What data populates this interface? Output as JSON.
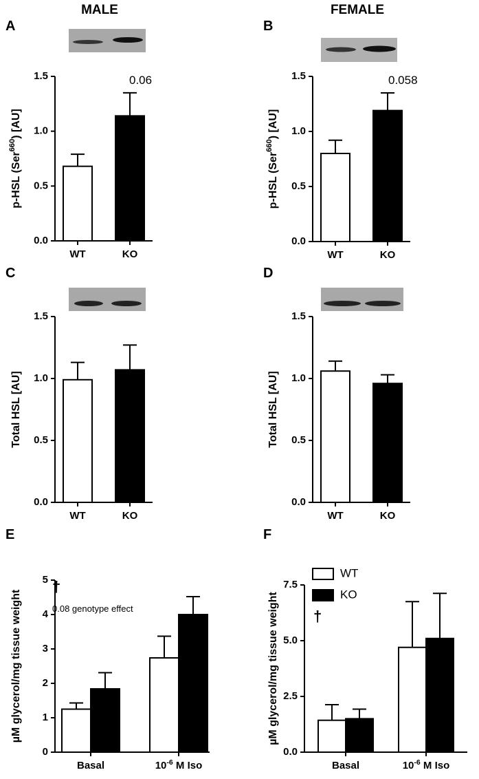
{
  "column_titles": [
    "MALE",
    "FEMALE"
  ],
  "chart_data": [
    {
      "type": "bar",
      "panel": "A",
      "ylabel": [
        "p-HSL (Ser",
        "660",
        ") [AU]"
      ],
      "categories": [
        "WT",
        "KO"
      ],
      "values": [
        0.68,
        1.14
      ],
      "errors": [
        0.11,
        0.21
      ],
      "colors": [
        "#ffffff",
        "#000000"
      ],
      "ylim": [
        0,
        1.5
      ],
      "yticks": [
        {
          "value": 0,
          "label": "0.0"
        },
        0.5,
        {
          "value": 1,
          "label": "1.0"
        },
        1.5
      ],
      "annotations": [
        "0.06"
      ]
    },
    {
      "type": "bar",
      "panel": "B",
      "ylabel": [
        "p-HSL (Ser",
        "660",
        ") [AU]"
      ],
      "categories": [
        "WT",
        "KO"
      ],
      "values": [
        0.8,
        1.19
      ],
      "errors": [
        0.12,
        0.16
      ],
      "colors": [
        "#ffffff",
        "#000000"
      ],
      "ylim": [
        0,
        1.5
      ],
      "yticks": [
        {
          "value": 0,
          "label": "0.0"
        },
        0.5,
        {
          "value": 1,
          "label": "1.0"
        },
        1.5
      ],
      "annotations": [
        "0.058"
      ]
    },
    {
      "type": "bar",
      "panel": "C",
      "ylabel": [
        "Total HSL [AU]"
      ],
      "categories": [
        "WT",
        "KO"
      ],
      "values": [
        0.99,
        1.07
      ],
      "errors": [
        0.14,
        0.2
      ],
      "colors": [
        "#ffffff",
        "#000000"
      ],
      "ylim": [
        0,
        1.5
      ],
      "yticks": [
        {
          "value": 0,
          "label": "0.0"
        },
        0.5,
        {
          "value": 1,
          "label": "1.0"
        },
        1.5
      ]
    },
    {
      "type": "bar",
      "panel": "D",
      "ylabel": [
        "Total HSL [AU]"
      ],
      "categories": [
        "WT",
        "KO"
      ],
      "values": [
        1.06,
        0.96
      ],
      "errors": [
        0.08,
        0.07
      ],
      "colors": [
        "#ffffff",
        "#000000"
      ],
      "ylim": [
        0,
        1.5
      ],
      "yticks": [
        {
          "value": 0,
          "label": "0.0"
        },
        0.5,
        {
          "value": 1,
          "label": "1.0"
        },
        1.5
      ]
    },
    {
      "type": "grouped_bar",
      "panel": "E",
      "ylabel": [
        "µM glycerol/mg tissue weight"
      ],
      "categories": [
        [
          "Basal"
        ],
        [
          "10",
          "-6",
          " M Iso"
        ]
      ],
      "series": [
        {
          "name": "WT",
          "color": "#ffffff",
          "values": [
            1.25,
            2.74
          ],
          "errors": [
            0.18,
            0.63
          ]
        },
        {
          "name": "KO",
          "color": "#000000",
          "values": [
            1.84,
            4.0
          ],
          "errors": [
            0.47,
            0.52
          ]
        }
      ],
      "ylim": [
        0,
        5
      ],
      "yticks": [
        0,
        1,
        2,
        3,
        4,
        5
      ],
      "annotations": [
        "†",
        "0.08 genotype effect"
      ]
    },
    {
      "type": "grouped_bar",
      "panel": "F",
      "ylabel": [
        "µM glycerol/mg tissue weight"
      ],
      "categories": [
        [
          "Basal"
        ],
        [
          "10",
          "-6",
          " M Iso"
        ]
      ],
      "series": [
        {
          "name": "WT",
          "color": "#ffffff",
          "values": [
            1.43,
            4.7
          ],
          "errors": [
            0.7,
            2.05
          ]
        },
        {
          "name": "KO",
          "color": "#000000",
          "values": [
            1.5,
            5.1
          ],
          "errors": [
            0.43,
            2.02
          ]
        }
      ],
      "ylim": [
        0,
        7.5
      ],
      "yticks": [
        {
          "value": 0,
          "label": "0.0"
        },
        2.5,
        {
          "value": 5,
          "label": "5.0"
        },
        {
          "value": 7.5,
          "label": "7.5"
        }
      ],
      "legend": true,
      "annotations": [
        "†"
      ]
    }
  ]
}
